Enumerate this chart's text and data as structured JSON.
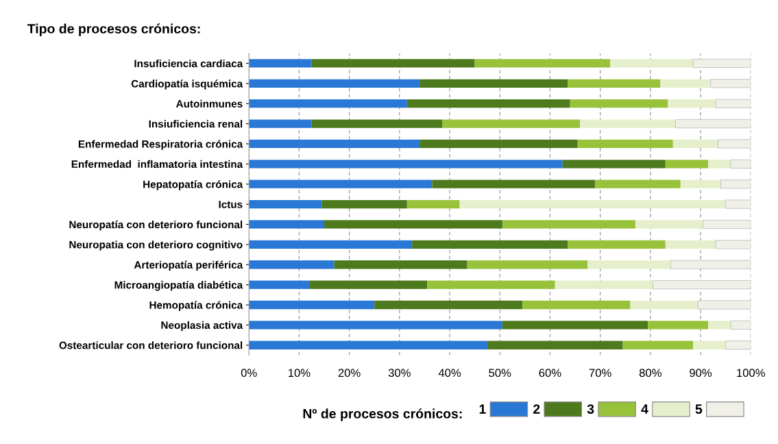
{
  "chart_data": {
    "type": "bar",
    "orientation": "horizontal",
    "stacked": true,
    "title": "Tipo de procesos crónicos:",
    "legend_title": "Nº de procesos crónicos:",
    "categories": [
      "Insuficiencia cardiaca",
      "Cardiopatía isquémica",
      "Autoinmunes",
      "Insiuficiencia renal",
      "Enfermedad Respiratoria crónica",
      "Enfermedad  inflamatoria intestina",
      "Hepatopatía crónica",
      "Ictus",
      "Neuropatía con deterioro funcional",
      "Neuropatia con deterioro cognitivo",
      "Arteriopatía periférica",
      "Microangiopatía diabética",
      "Hemopatía crónica",
      "Neoplasia activa",
      "Ostearticular con deterioro funcional"
    ],
    "series": [
      {
        "name": "1",
        "color": "#2a78d6",
        "values": [
          12.5,
          34,
          31.5,
          12.5,
          34,
          62.5,
          36.5,
          14.5,
          15,
          32.5,
          17,
          12,
          25,
          50.5,
          47.5
        ]
      },
      {
        "name": "2",
        "color": "#4e7a1e",
        "values": [
          32.5,
          29.5,
          32.5,
          26,
          31.5,
          20.5,
          32.5,
          17,
          35.5,
          31,
          26.5,
          23.5,
          29.5,
          29,
          27
        ]
      },
      {
        "name": "3",
        "color": "#98c23a",
        "values": [
          27,
          18.5,
          19.5,
          27.5,
          19,
          8.5,
          17,
          10.5,
          26.5,
          19.5,
          24,
          25.5,
          21.5,
          12,
          14
        ]
      },
      {
        "name": "4",
        "color": "#e6efcc",
        "values": [
          16.5,
          10,
          9.5,
          19,
          9,
          4.5,
          8,
          53,
          13.5,
          10,
          16.5,
          19.5,
          13.5,
          4.5,
          6.5
        ]
      },
      {
        "name": "5",
        "color": "#f0f0e8",
        "values": [
          11.5,
          8,
          7,
          15,
          6.5,
          4,
          6,
          5,
          9.5,
          7,
          16,
          19.5,
          10.5,
          4,
          5
        ]
      }
    ],
    "xlim": [
      0,
      100
    ],
    "xticks": [
      {
        "value": 0,
        "label": "0%"
      },
      {
        "value": 10,
        "label": "10%"
      },
      {
        "value": 20,
        "label": "20%"
      },
      {
        "value": 30,
        "label": "30%"
      },
      {
        "value": 40,
        "label": "40%"
      },
      {
        "value": 50,
        "label": "50%"
      },
      {
        "value": 60,
        "label": "60%"
      },
      {
        "value": 70,
        "label": "70%"
      },
      {
        "value": 80,
        "label": "80%"
      },
      {
        "value": 90,
        "label": "90%"
      },
      {
        "value": 100,
        "label": "100%"
      }
    ],
    "grid": "x",
    "legend": "bottom"
  }
}
